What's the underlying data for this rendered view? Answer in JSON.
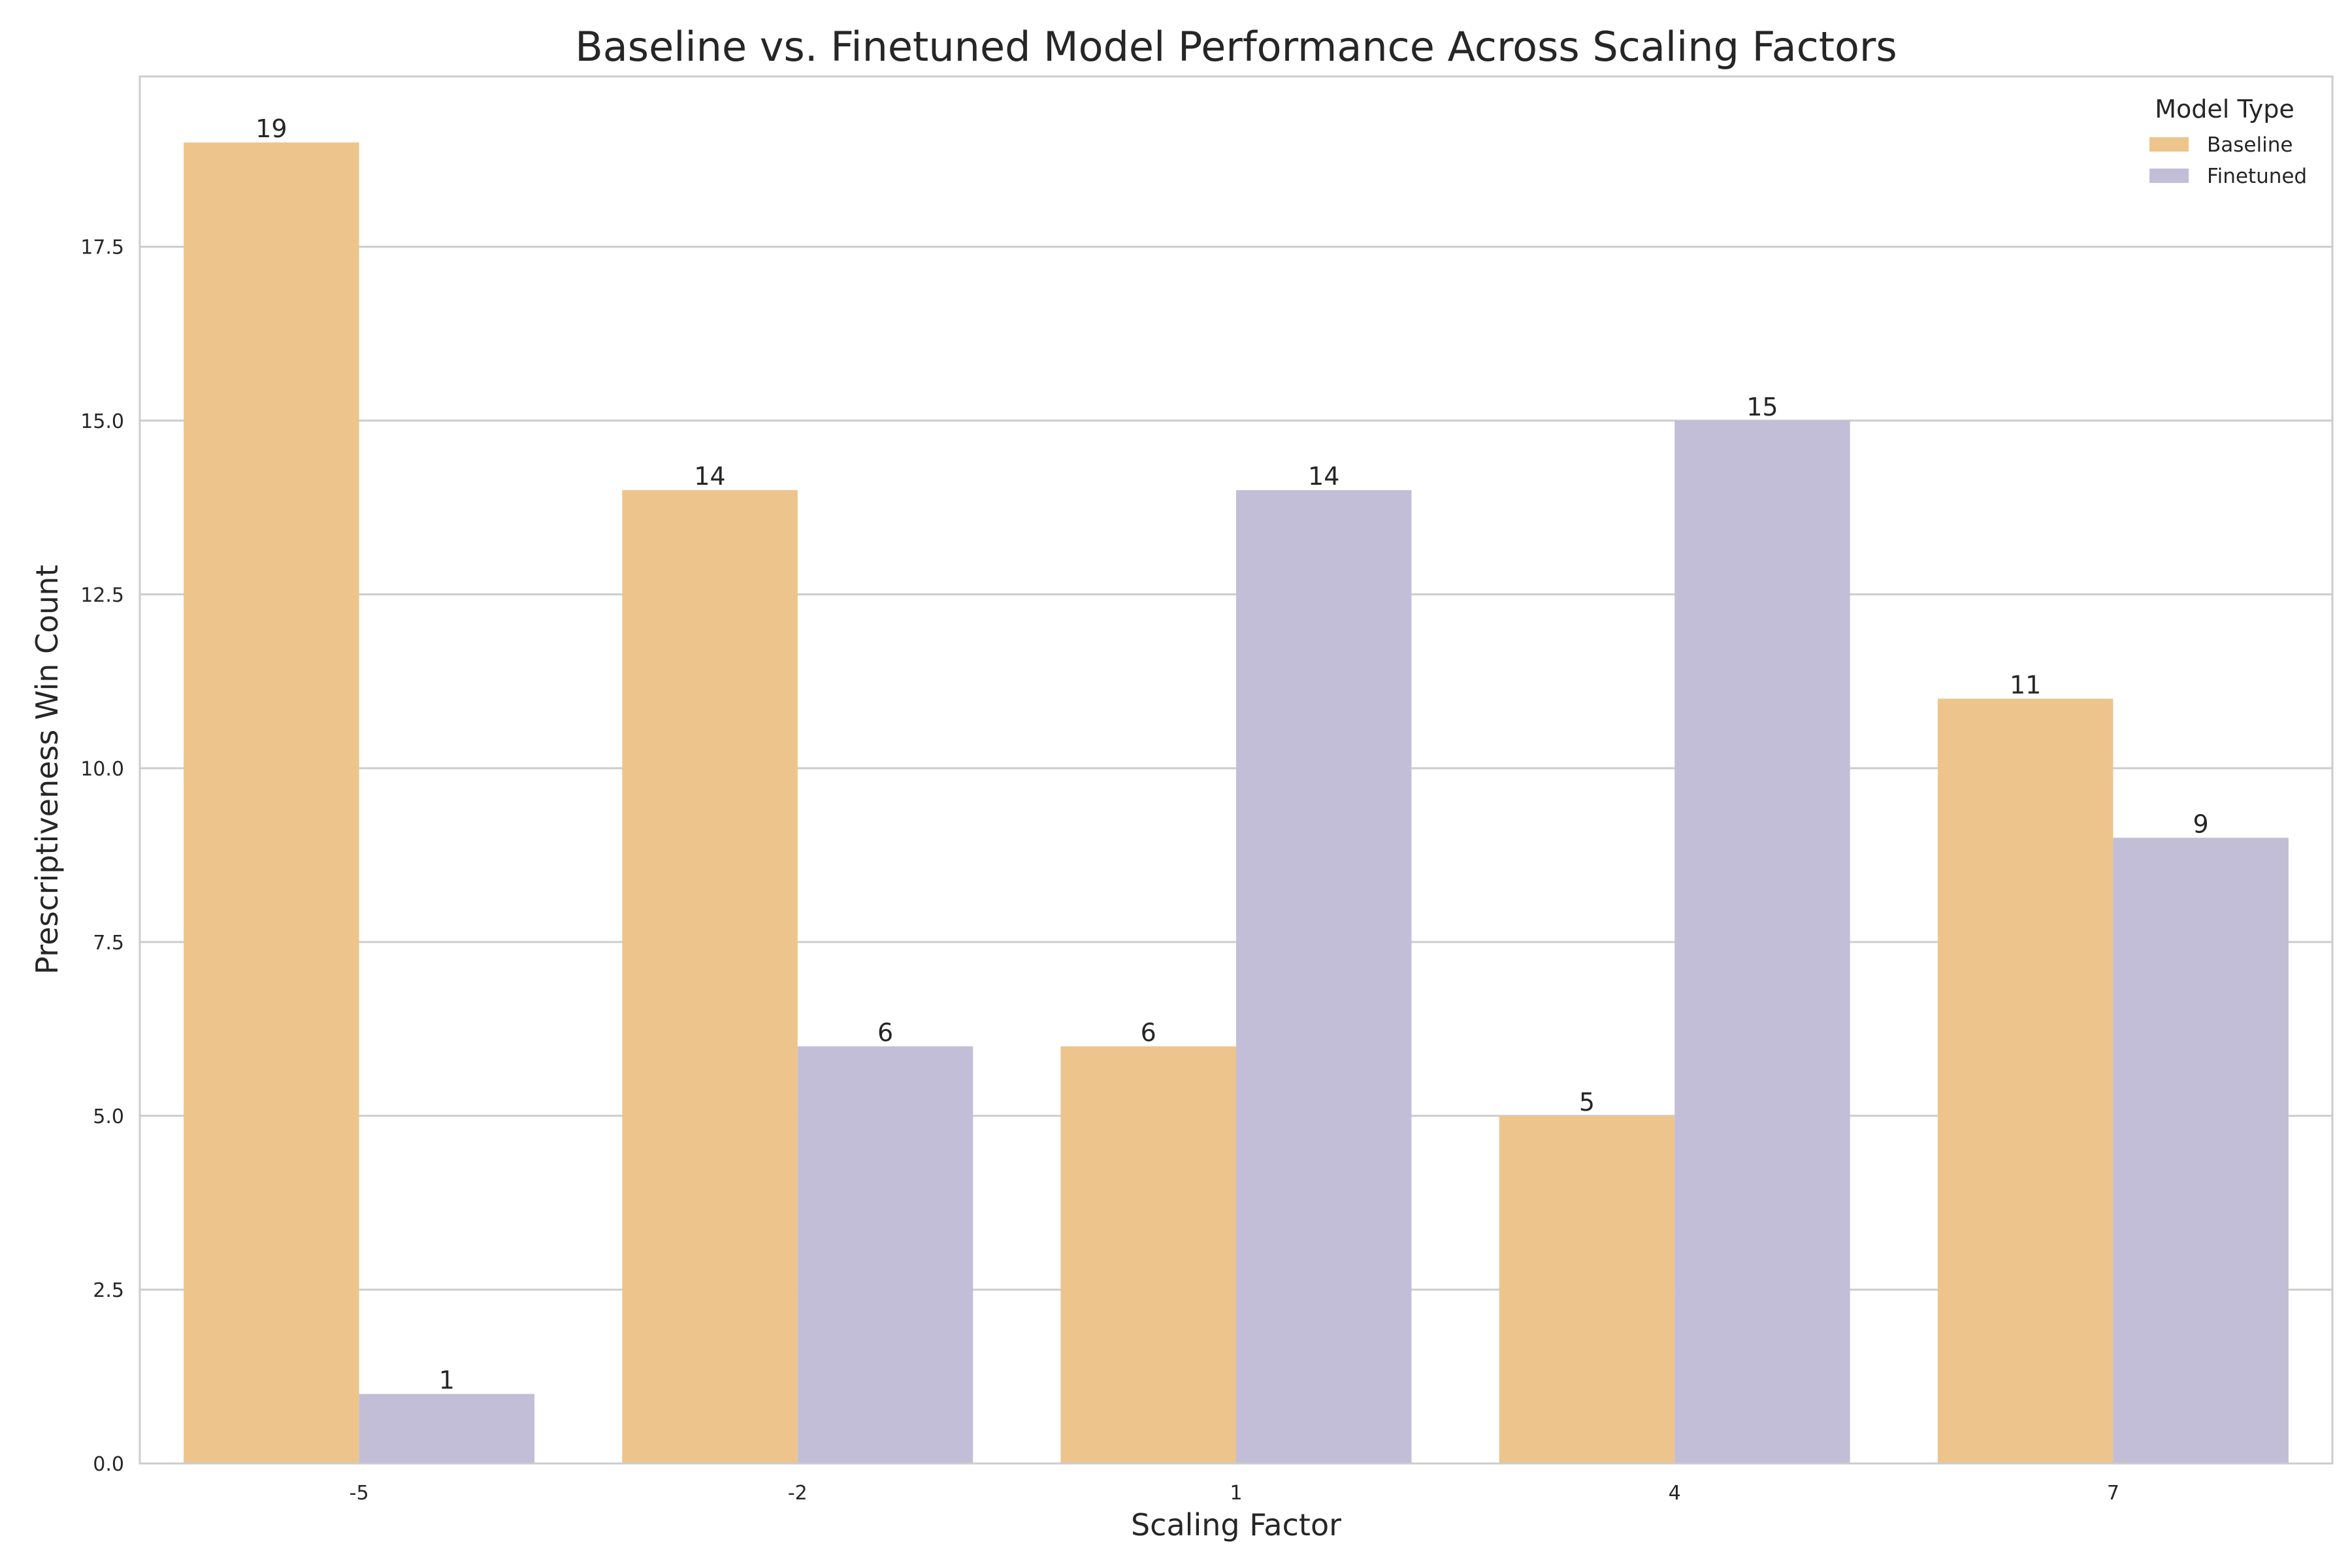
{
  "chart_data": {
    "type": "bar",
    "title": "Baseline vs. Finetuned Model Performance Across Scaling Factors",
    "xlabel": "Scaling Factor",
    "ylabel": "Prescriptiveness Win Count",
    "categories": [
      "-5",
      "-2",
      "1",
      "4",
      "7"
    ],
    "series": [
      {
        "name": "Baseline",
        "values": [
          19,
          14,
          6,
          5,
          11
        ],
        "color": "#EDC48C"
      },
      {
        "name": "Finetuned",
        "values": [
          1,
          6,
          14,
          15,
          9
        ],
        "color": "#C3BED7"
      }
    ],
    "ylim": [
      0,
      19.95
    ],
    "yticks": [
      "0.0",
      "2.5",
      "5.0",
      "7.5",
      "10.0",
      "12.5",
      "15.0",
      "17.5"
    ],
    "grid": true,
    "legend": {
      "title": "Model Type",
      "position": "top-right"
    }
  }
}
